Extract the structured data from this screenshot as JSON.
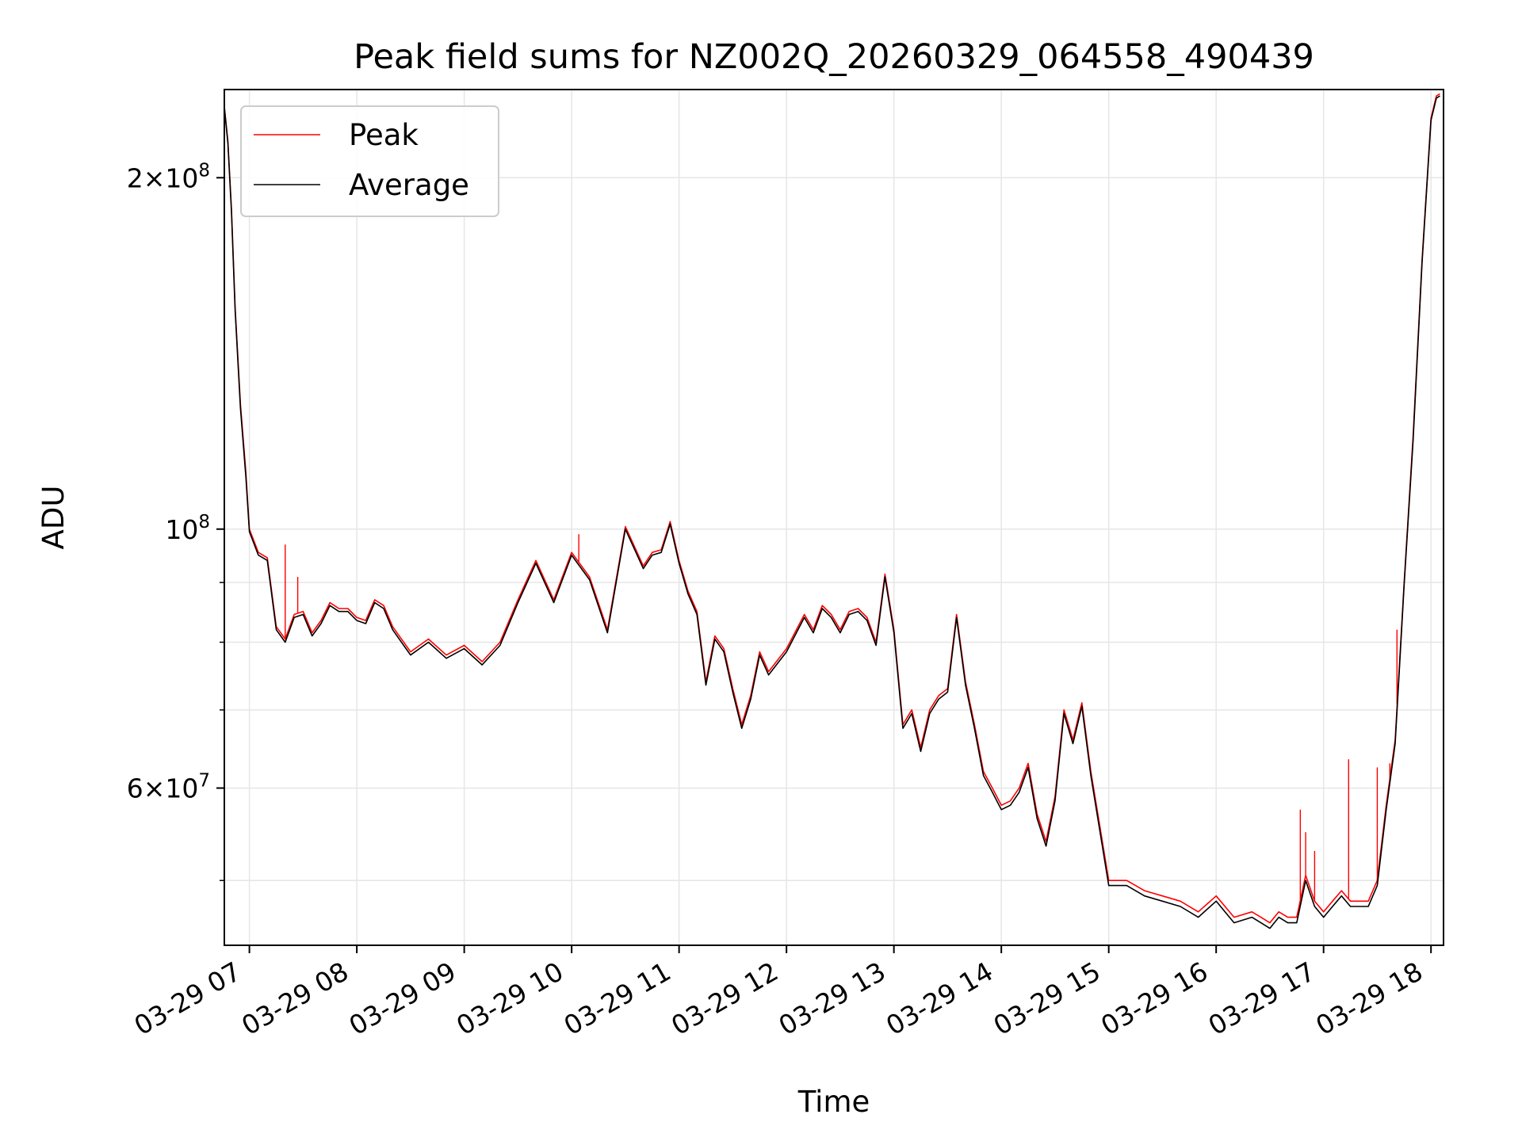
{
  "chart_data": {
    "type": "line",
    "title": "Peak field sums for NZ002Q_20260329_064558_490439",
    "xlabel": "Time",
    "ylabel": "ADU",
    "y_scale": "log",
    "ylim": [
      44000000,
      238000000
    ],
    "xlim": [
      "2026-03-29 06:46",
      "2026-03-29 18:07"
    ],
    "grid": true,
    "legend_position": "top-left",
    "x_ticks": [
      {
        "t": "2026-03-29 07:00",
        "label": "03-29 07"
      },
      {
        "t": "2026-03-29 08:00",
        "label": "03-29 08"
      },
      {
        "t": "2026-03-29 09:00",
        "label": "03-29 09"
      },
      {
        "t": "2026-03-29 10:00",
        "label": "03-29 10"
      },
      {
        "t": "2026-03-29 11:00",
        "label": "03-29 11"
      },
      {
        "t": "2026-03-29 12:00",
        "label": "03-29 12"
      },
      {
        "t": "2026-03-29 13:00",
        "label": "03-29 13"
      },
      {
        "t": "2026-03-29 14:00",
        "label": "03-29 14"
      },
      {
        "t": "2026-03-29 15:00",
        "label": "03-29 15"
      },
      {
        "t": "2026-03-29 16:00",
        "label": "03-29 16"
      },
      {
        "t": "2026-03-29 17:00",
        "label": "03-29 17"
      },
      {
        "t": "2026-03-29 18:00",
        "label": "03-29 18"
      }
    ],
    "y_major_ticks": [
      {
        "value": 60000000,
        "mantissa": "6",
        "exponent": "7"
      },
      {
        "value": 100000000,
        "mantissa": "",
        "exponent": "8"
      },
      {
        "value": 200000000,
        "mantissa": "2",
        "exponent": "8"
      }
    ],
    "y_minor_ticks": [
      50000000,
      70000000,
      80000000,
      90000000
    ],
    "series": [
      {
        "name": "Peak",
        "color": "#ff0000",
        "x": [
          "2026-03-29 06:46",
          "2026-03-29 06:48",
          "2026-03-29 06:50",
          "2026-03-29 06:52",
          "2026-03-29 06:55",
          "2026-03-29 06:58",
          "2026-03-29 07:00",
          "2026-03-29 07:05",
          "2026-03-29 07:10",
          "2026-03-29 07:15",
          "2026-03-29 07:20",
          "2026-03-29 07:25",
          "2026-03-29 07:30",
          "2026-03-29 07:35",
          "2026-03-29 07:40",
          "2026-03-29 07:45",
          "2026-03-29 07:50",
          "2026-03-29 07:55",
          "2026-03-29 08:00",
          "2026-03-29 08:05",
          "2026-03-29 08:10",
          "2026-03-29 08:15",
          "2026-03-29 08:20",
          "2026-03-29 08:30",
          "2026-03-29 08:40",
          "2026-03-29 08:50",
          "2026-03-29 09:00",
          "2026-03-29 09:10",
          "2026-03-29 09:20",
          "2026-03-29 09:30",
          "2026-03-29 09:40",
          "2026-03-29 09:50",
          "2026-03-29 10:00",
          "2026-03-29 10:10",
          "2026-03-29 10:20",
          "2026-03-29 10:30",
          "2026-03-29 10:40",
          "2026-03-29 10:45",
          "2026-03-29 10:50",
          "2026-03-29 10:55",
          "2026-03-29 11:00",
          "2026-03-29 11:05",
          "2026-03-29 11:10",
          "2026-03-29 11:15",
          "2026-03-29 11:20",
          "2026-03-29 11:25",
          "2026-03-29 11:30",
          "2026-03-29 11:35",
          "2026-03-29 11:40",
          "2026-03-29 11:45",
          "2026-03-29 11:50",
          "2026-03-29 12:00",
          "2026-03-29 12:10",
          "2026-03-29 12:15",
          "2026-03-29 12:20",
          "2026-03-29 12:25",
          "2026-03-29 12:30",
          "2026-03-29 12:35",
          "2026-03-29 12:40",
          "2026-03-29 12:45",
          "2026-03-29 12:50",
          "2026-03-29 12:55",
          "2026-03-29 13:00",
          "2026-03-29 13:05",
          "2026-03-29 13:10",
          "2026-03-29 13:15",
          "2026-03-29 13:20",
          "2026-03-29 13:25",
          "2026-03-29 13:30",
          "2026-03-29 13:35",
          "2026-03-29 13:40",
          "2026-03-29 13:45",
          "2026-03-29 13:50",
          "2026-03-29 13:55",
          "2026-03-29 14:00",
          "2026-03-29 14:05",
          "2026-03-29 14:10",
          "2026-03-29 14:15",
          "2026-03-29 14:20",
          "2026-03-29 14:25",
          "2026-03-29 14:30",
          "2026-03-29 14:35",
          "2026-03-29 14:40",
          "2026-03-29 14:45",
          "2026-03-29 14:50",
          "2026-03-29 15:00",
          "2026-03-29 15:10",
          "2026-03-29 15:20",
          "2026-03-29 15:30",
          "2026-03-29 15:40",
          "2026-03-29 15:50",
          "2026-03-29 16:00",
          "2026-03-29 16:10",
          "2026-03-29 16:20",
          "2026-03-29 16:25",
          "2026-03-29 16:30",
          "2026-03-29 16:35",
          "2026-03-29 16:40",
          "2026-03-29 16:45",
          "2026-03-29 16:50",
          "2026-03-29 16:55",
          "2026-03-29 17:00",
          "2026-03-29 17:05",
          "2026-03-29 17:10",
          "2026-03-29 17:15",
          "2026-03-29 17:20",
          "2026-03-29 17:25",
          "2026-03-29 17:30",
          "2026-03-29 17:35",
          "2026-03-29 17:40",
          "2026-03-29 17:45",
          "2026-03-29 17:50",
          "2026-03-29 17:55",
          "2026-03-29 18:00",
          "2026-03-29 18:03",
          "2026-03-29 18:05"
        ],
        "y": [
          230000000,
          215000000,
          188000000,
          155000000,
          128000000,
          112000000,
          100000000,
          95500000,
          94500000,
          82500000,
          80500000,
          84500000,
          85000000,
          81500000,
          83500000,
          86500000,
          85500000,
          85500000,
          84000000,
          83500000,
          87000000,
          86000000,
          82500000,
          78500000,
          80500000,
          78000000,
          79500000,
          77000000,
          80000000,
          87000000,
          94000000,
          87000000,
          95500000,
          91000000,
          82000000,
          100500000,
          93000000,
          95500000,
          96000000,
          101500000,
          94000000,
          88500000,
          85000000,
          74000000,
          81000000,
          79000000,
          73000000,
          68000000,
          72000000,
          78500000,
          75500000,
          79000000,
          84500000,
          82000000,
          86000000,
          84500000,
          82000000,
          85000000,
          85500000,
          84000000,
          80000000,
          91500000,
          82000000,
          68000000,
          70000000,
          65000000,
          70000000,
          72000000,
          73000000,
          84500000,
          74000000,
          68000000,
          62000000,
          60000000,
          58000000,
          58500000,
          60000000,
          63000000,
          57000000,
          54000000,
          59000000,
          70000000,
          66000000,
          71000000,
          62000000,
          50000000,
          50000000,
          49000000,
          48500000,
          48000000,
          47000000,
          48500000,
          46500000,
          47000000,
          46500000,
          46000000,
          47000000,
          46500000,
          46500000,
          50500000,
          48000000,
          47000000,
          48000000,
          49000000,
          48000000,
          48000000,
          48000000,
          50000000,
          58000000,
          66000000,
          90000000,
          120000000,
          170000000,
          225000000,
          235000000,
          236000000
        ],
        "spikes": [
          {
            "t": "2026-03-29 07:20",
            "value": 97000000
          },
          {
            "t": "2026-03-29 07:27",
            "value": 91000000
          },
          {
            "t": "2026-03-29 10:04",
            "value": 99000000
          },
          {
            "t": "2026-03-29 16:47",
            "value": 57500000
          },
          {
            "t": "2026-03-29 16:50",
            "value": 55000000
          },
          {
            "t": "2026-03-29 16:55",
            "value": 53000000
          },
          {
            "t": "2026-03-29 17:14",
            "value": 63500000
          },
          {
            "t": "2026-03-29 17:30",
            "value": 62500000
          },
          {
            "t": "2026-03-29 17:37",
            "value": 63000000
          },
          {
            "t": "2026-03-29 17:41",
            "value": 82000000
          }
        ]
      },
      {
        "name": "Average",
        "color": "#000000",
        "x": [
          "2026-03-29 06:46",
          "2026-03-29 06:48",
          "2026-03-29 06:50",
          "2026-03-29 06:52",
          "2026-03-29 06:55",
          "2026-03-29 06:58",
          "2026-03-29 07:00",
          "2026-03-29 07:05",
          "2026-03-29 07:10",
          "2026-03-29 07:15",
          "2026-03-29 07:20",
          "2026-03-29 07:25",
          "2026-03-29 07:30",
          "2026-03-29 07:35",
          "2026-03-29 07:40",
          "2026-03-29 07:45",
          "2026-03-29 07:50",
          "2026-03-29 07:55",
          "2026-03-29 08:00",
          "2026-03-29 08:05",
          "2026-03-29 08:10",
          "2026-03-29 08:15",
          "2026-03-29 08:20",
          "2026-03-29 08:30",
          "2026-03-29 08:40",
          "2026-03-29 08:50",
          "2026-03-29 09:00",
          "2026-03-29 09:10",
          "2026-03-29 09:20",
          "2026-03-29 09:30",
          "2026-03-29 09:40",
          "2026-03-29 09:50",
          "2026-03-29 10:00",
          "2026-03-29 10:10",
          "2026-03-29 10:20",
          "2026-03-29 10:30",
          "2026-03-29 10:40",
          "2026-03-29 10:45",
          "2026-03-29 10:50",
          "2026-03-29 10:55",
          "2026-03-29 11:00",
          "2026-03-29 11:05",
          "2026-03-29 11:10",
          "2026-03-29 11:15",
          "2026-03-29 11:20",
          "2026-03-29 11:25",
          "2026-03-29 11:30",
          "2026-03-29 11:35",
          "2026-03-29 11:40",
          "2026-03-29 11:45",
          "2026-03-29 11:50",
          "2026-03-29 12:00",
          "2026-03-29 12:10",
          "2026-03-29 12:15",
          "2026-03-29 12:20",
          "2026-03-29 12:25",
          "2026-03-29 12:30",
          "2026-03-29 12:35",
          "2026-03-29 12:40",
          "2026-03-29 12:45",
          "2026-03-29 12:50",
          "2026-03-29 12:55",
          "2026-03-29 13:00",
          "2026-03-29 13:05",
          "2026-03-29 13:10",
          "2026-03-29 13:15",
          "2026-03-29 13:20",
          "2026-03-29 13:25",
          "2026-03-29 13:30",
          "2026-03-29 13:35",
          "2026-03-29 13:40",
          "2026-03-29 13:45",
          "2026-03-29 13:50",
          "2026-03-29 13:55",
          "2026-03-29 14:00",
          "2026-03-29 14:05",
          "2026-03-29 14:10",
          "2026-03-29 14:15",
          "2026-03-29 14:20",
          "2026-03-29 14:25",
          "2026-03-29 14:30",
          "2026-03-29 14:35",
          "2026-03-29 14:40",
          "2026-03-29 14:45",
          "2026-03-29 14:50",
          "2026-03-29 15:00",
          "2026-03-29 15:10",
          "2026-03-29 15:20",
          "2026-03-29 15:30",
          "2026-03-29 15:40",
          "2026-03-29 15:50",
          "2026-03-29 16:00",
          "2026-03-29 16:10",
          "2026-03-29 16:20",
          "2026-03-29 16:25",
          "2026-03-29 16:30",
          "2026-03-29 16:35",
          "2026-03-29 16:40",
          "2026-03-29 16:45",
          "2026-03-29 16:50",
          "2026-03-29 16:55",
          "2026-03-29 17:00",
          "2026-03-29 17:05",
          "2026-03-29 17:10",
          "2026-03-29 17:15",
          "2026-03-29 17:20",
          "2026-03-29 17:25",
          "2026-03-29 17:30",
          "2026-03-29 17:35",
          "2026-03-29 17:40",
          "2026-03-29 17:45",
          "2026-03-29 17:50",
          "2026-03-29 17:55",
          "2026-03-29 18:00",
          "2026-03-29 18:03",
          "2026-03-29 18:05"
        ],
        "y": [
          230000000,
          214000000,
          187000000,
          154000000,
          127000000,
          111000000,
          99500000,
          95000000,
          94000000,
          82000000,
          80000000,
          84000000,
          84500000,
          81000000,
          83000000,
          86000000,
          85000000,
          85000000,
          83500000,
          83000000,
          86500000,
          85500000,
          82000000,
          78000000,
          80000000,
          77500000,
          79000000,
          76500000,
          79500000,
          86500000,
          93500000,
          86500000,
          95000000,
          90500000,
          81500000,
          100000000,
          92500000,
          95000000,
          95500000,
          101000000,
          93500000,
          88000000,
          84500000,
          73500000,
          80500000,
          78500000,
          72500000,
          67500000,
          71500000,
          78000000,
          75000000,
          78500000,
          84000000,
          81500000,
          85500000,
          84000000,
          81500000,
          84500000,
          85000000,
          83500000,
          79500000,
          91000000,
          81500000,
          67500000,
          69500000,
          64500000,
          69500000,
          71500000,
          72500000,
          84000000,
          73500000,
          67500000,
          61500000,
          59500000,
          57500000,
          58000000,
          59500000,
          62500000,
          56500000,
          53500000,
          58500000,
          69500000,
          65500000,
          70500000,
          61500000,
          49500000,
          49500000,
          48500000,
          48000000,
          47500000,
          46500000,
          48000000,
          46000000,
          46500000,
          46000000,
          45500000,
          46500000,
          46000000,
          46000000,
          50000000,
          47500000,
          46500000,
          47500000,
          48500000,
          47500000,
          47500000,
          47500000,
          49500000,
          57500000,
          65500000,
          89500000,
          119000000,
          169000000,
          224000000,
          234000000,
          235000000
        ]
      }
    ]
  }
}
